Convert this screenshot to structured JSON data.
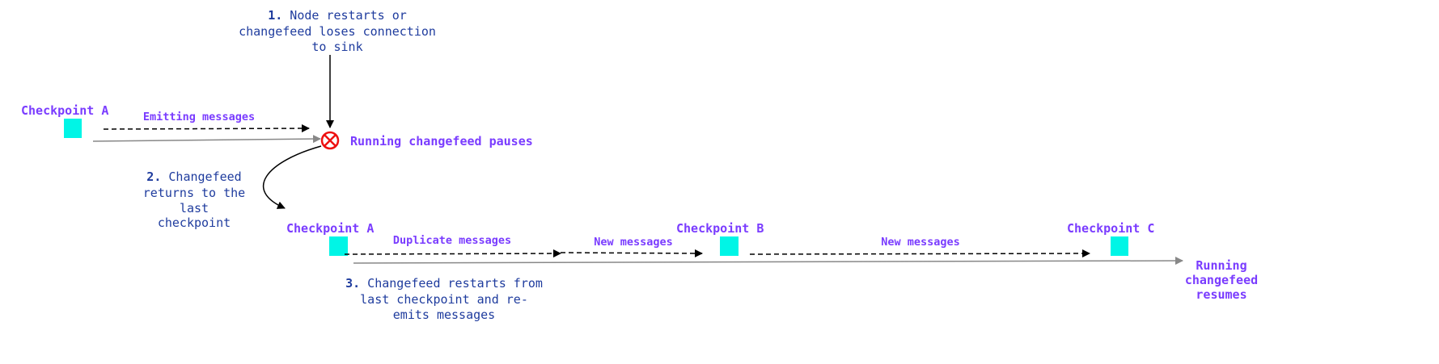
{
  "colors": {
    "checkpoint": "#00f5e6",
    "label": "#7a3cff",
    "note": "#1f3c9e",
    "pause": "#ee1111",
    "timeline": "#888888",
    "arrow": "#000000"
  },
  "note1": {
    "num": "1.",
    "lines": [
      "Node restarts or",
      "changefeed loses connection",
      "to sink"
    ]
  },
  "note2": {
    "num": "2.",
    "lines": [
      "Changefeed",
      "returns to the",
      "last",
      "checkpoint"
    ]
  },
  "note3": {
    "num": "3.",
    "lines": [
      "Changefeed restarts from",
      "last checkpoint and re-",
      "emits messages"
    ]
  },
  "top": {
    "checkpoint": "Checkpoint A",
    "emitting": "Emitting messages",
    "pause": "Running changefeed pauses",
    "pause_icon": "cross-circle-icon"
  },
  "bottom": {
    "checkpoints": [
      "Checkpoint A",
      "Checkpoint B",
      "Checkpoint C"
    ],
    "duplicate": "Duplicate messages",
    "new1": "New messages",
    "new2": "New messages",
    "resume": [
      "Running",
      "changefeed",
      "resumes"
    ]
  }
}
